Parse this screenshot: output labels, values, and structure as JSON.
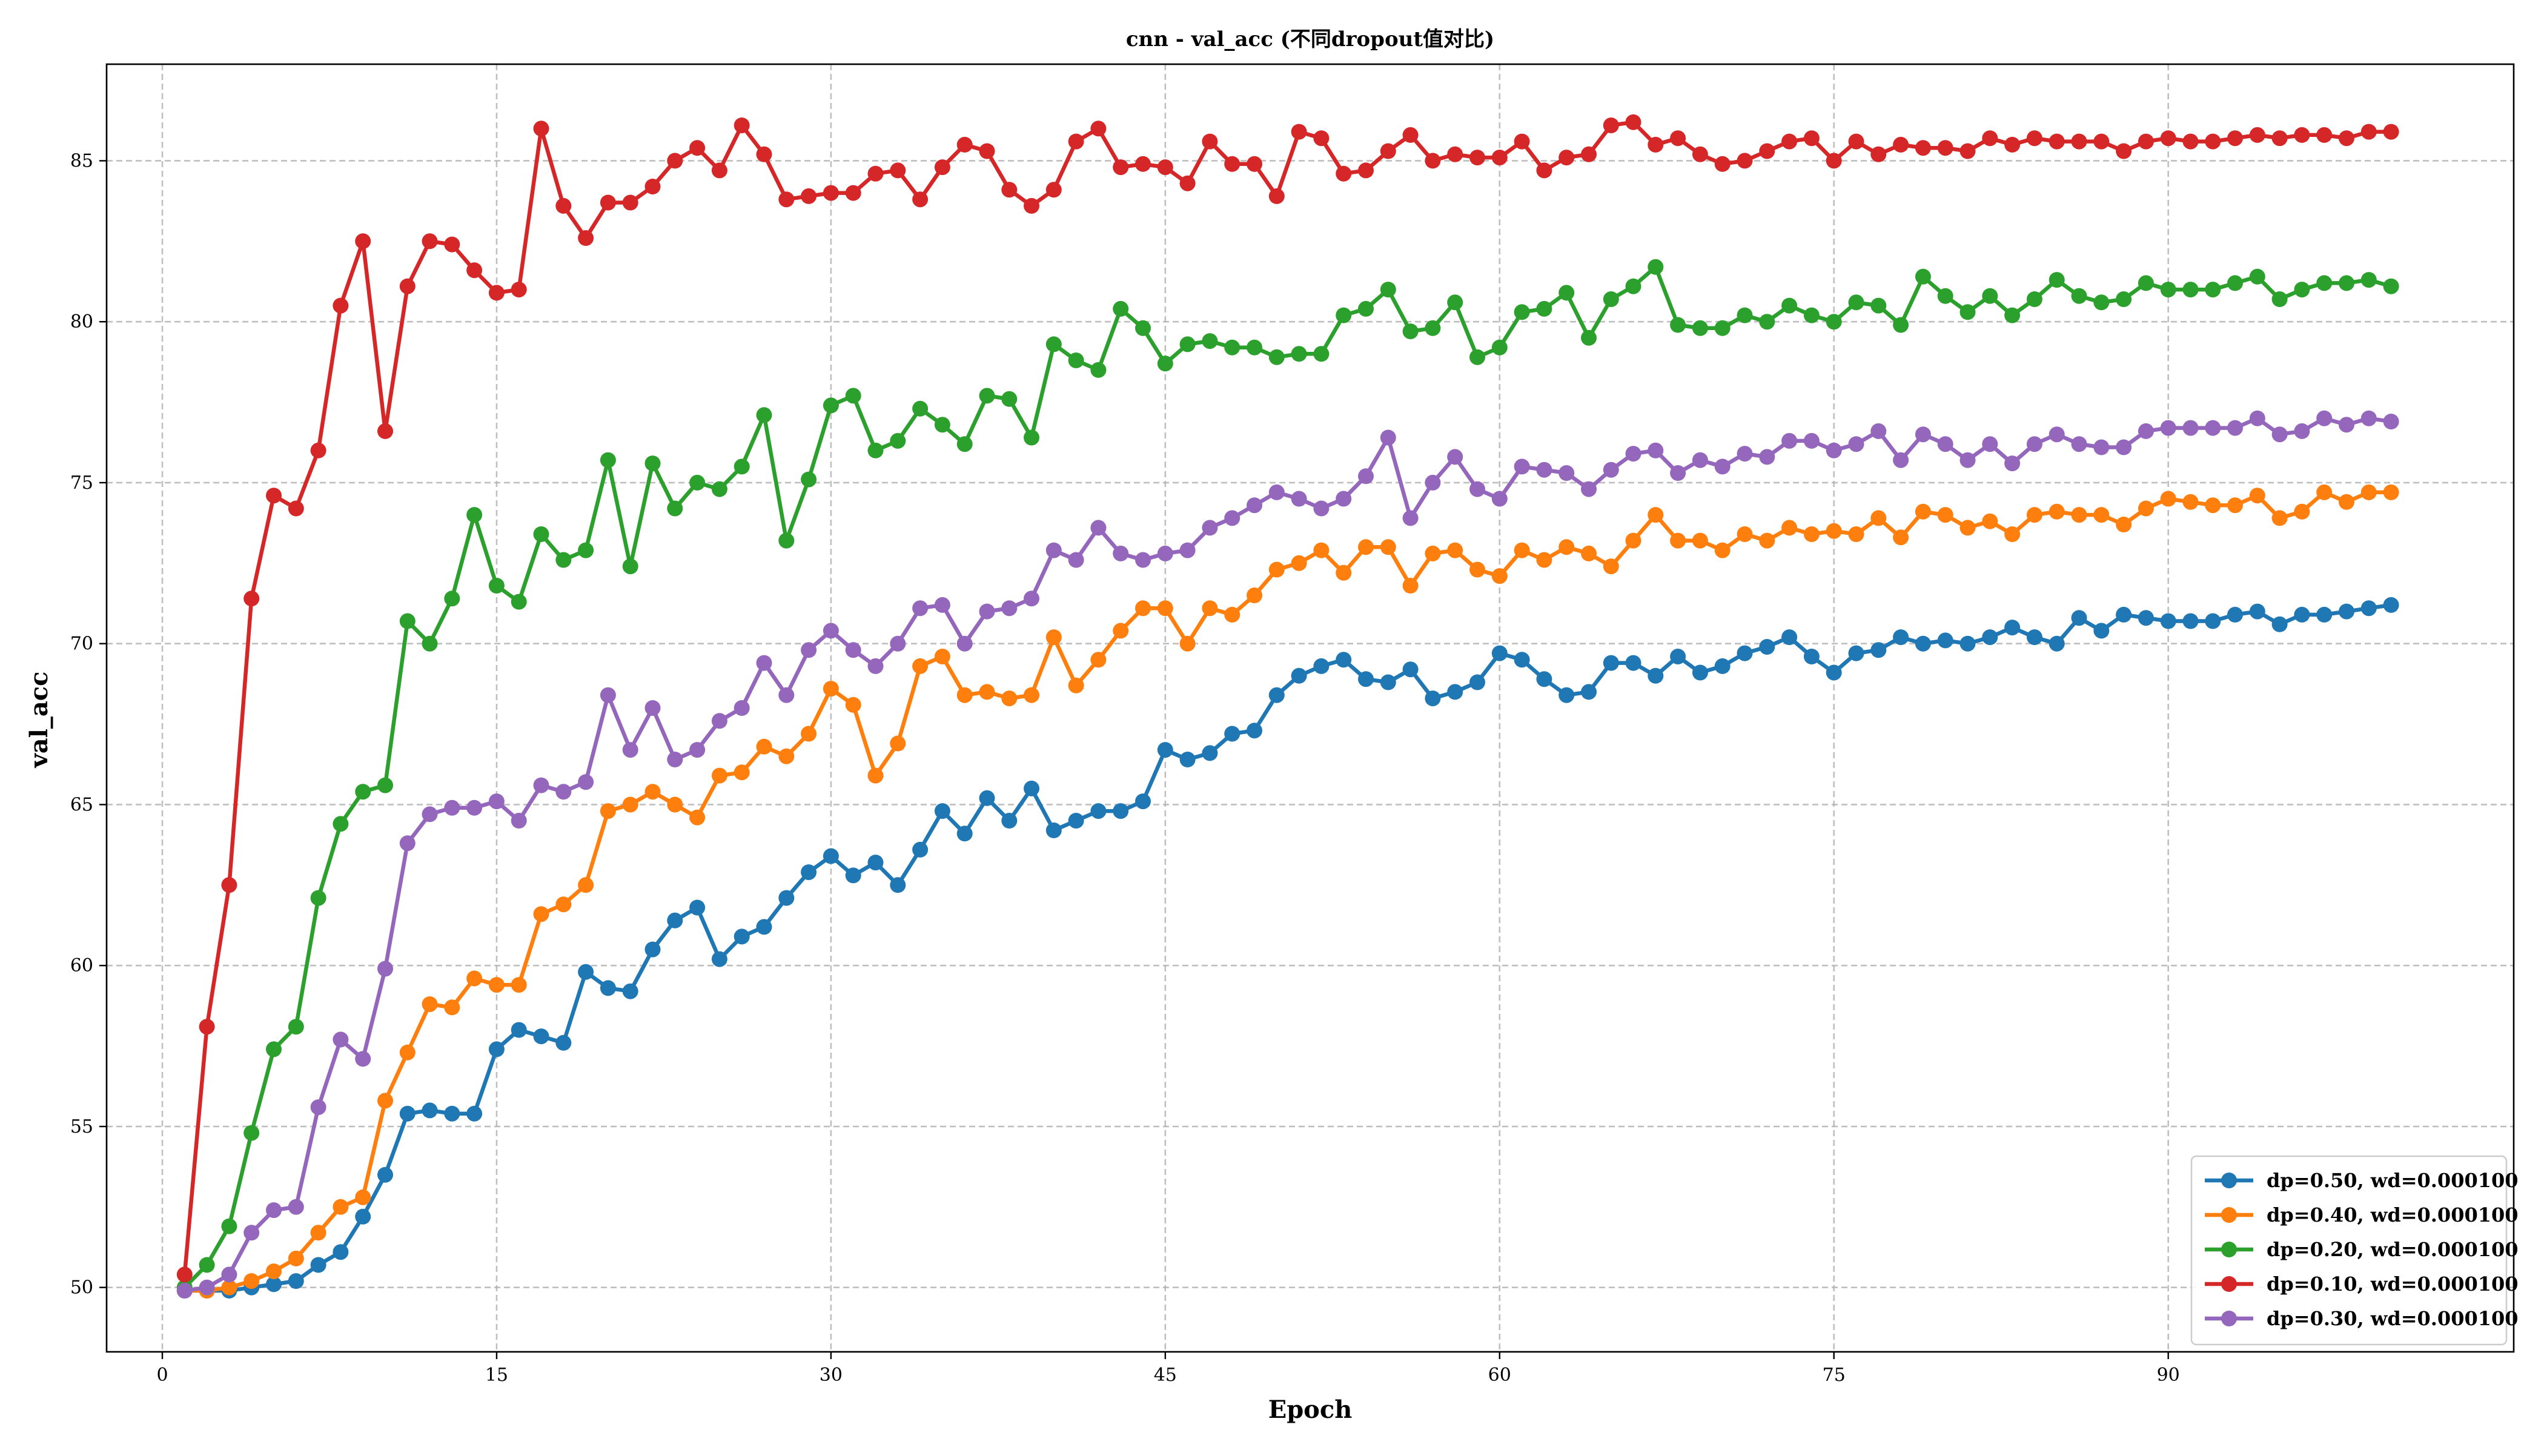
{
  "chart_data": {
    "type": "line",
    "title": "cnn - val_acc (不同dropout值对比)",
    "xlabel": "Epoch",
    "ylabel": "val_acc",
    "xlim": [
      -2.5,
      105.5
    ],
    "ylim": [
      48,
      88
    ],
    "xticks": [
      0,
      15,
      30,
      45,
      60,
      75,
      90
    ],
    "yticks": [
      50,
      55,
      60,
      65,
      70,
      75,
      80,
      85
    ],
    "grid": true,
    "legend_position": "lower-right",
    "series": [
      {
        "name": "dp=0.50, wd=0.000100",
        "color": "#1f77b4",
        "x": [
          1,
          2,
          3,
          4,
          5,
          6,
          7,
          8,
          9,
          10,
          11,
          12,
          13,
          14,
          15,
          16,
          17,
          18,
          19,
          20,
          21,
          22,
          23,
          24,
          25,
          26,
          27,
          28,
          29,
          30,
          31,
          32,
          33,
          34,
          35,
          36,
          37,
          38,
          39,
          40,
          41,
          42,
          43,
          44,
          45,
          46,
          47,
          48,
          49,
          50,
          51,
          52,
          53,
          54,
          55,
          56,
          57,
          58,
          59,
          60,
          61,
          62,
          63,
          64,
          65,
          66,
          67,
          68,
          69,
          70,
          71,
          72,
          73,
          74,
          75,
          76,
          77,
          78,
          79,
          80,
          81,
          82,
          83,
          84,
          85,
          86,
          87,
          88,
          89,
          90,
          91,
          92,
          93,
          94,
          95,
          96,
          97,
          98,
          99,
          100
        ],
        "y": [
          49.9,
          49.9,
          49.9,
          50.0,
          50.1,
          50.2,
          50.7,
          51.1,
          52.2,
          53.5,
          55.4,
          55.5,
          55.4,
          55.4,
          57.4,
          58.0,
          57.8,
          57.6,
          59.8,
          59.3,
          59.2,
          60.5,
          61.4,
          61.8,
          60.2,
          60.9,
          61.2,
          62.1,
          62.9,
          63.4,
          62.8,
          63.2,
          62.5,
          63.6,
          64.8,
          64.1,
          65.2,
          64.5,
          65.5,
          64.2,
          64.5,
          64.8,
          64.8,
          65.1,
          66.7,
          66.4,
          66.6,
          67.2,
          67.3,
          68.4,
          69.0,
          69.3,
          69.5,
          68.9,
          68.8,
          69.2,
          68.3,
          68.5,
          68.8,
          69.7,
          69.5,
          68.9,
          68.4,
          68.5,
          69.4,
          69.4,
          69.0,
          69.6,
          69.1,
          69.3,
          69.7,
          69.9,
          70.2,
          69.6,
          69.1,
          69.7,
          69.8,
          70.2,
          70.0,
          70.1,
          70.0,
          70.2,
          70.5,
          70.2,
          70.0,
          70.8,
          70.4,
          70.9,
          70.8,
          70.7,
          70.7,
          70.7,
          70.9,
          71.0,
          70.6,
          70.9,
          70.9,
          71.0,
          71.1,
          71.2
        ]
      },
      {
        "name": "dp=0.40, wd=0.000100",
        "color": "#ff7f0e",
        "x": [
          1,
          2,
          3,
          4,
          5,
          6,
          7,
          8,
          9,
          10,
          11,
          12,
          13,
          14,
          15,
          16,
          17,
          18,
          19,
          20,
          21,
          22,
          23,
          24,
          25,
          26,
          27,
          28,
          29,
          30,
          31,
          32,
          33,
          34,
          35,
          36,
          37,
          38,
          39,
          40,
          41,
          42,
          43,
          44,
          45,
          46,
          47,
          48,
          49,
          50,
          51,
          52,
          53,
          54,
          55,
          56,
          57,
          58,
          59,
          60,
          61,
          62,
          63,
          64,
          65,
          66,
          67,
          68,
          69,
          70,
          71,
          72,
          73,
          74,
          75,
          76,
          77,
          78,
          79,
          80,
          81,
          82,
          83,
          84,
          85,
          86,
          87,
          88,
          89,
          90,
          91,
          92,
          93,
          94,
          95,
          96,
          97,
          98,
          99,
          100
        ],
        "y": [
          49.9,
          49.9,
          50.0,
          50.2,
          50.5,
          50.9,
          51.7,
          52.5,
          52.8,
          55.8,
          57.3,
          58.8,
          58.7,
          59.6,
          59.4,
          59.4,
          61.6,
          61.9,
          62.5,
          64.8,
          65.0,
          65.4,
          65.0,
          64.6,
          65.9,
          66.0,
          66.8,
          66.5,
          67.2,
          68.6,
          68.1,
          65.9,
          66.9,
          69.3,
          69.6,
          68.4,
          68.5,
          68.3,
          68.4,
          70.2,
          68.7,
          69.5,
          70.4,
          71.1,
          71.1,
          70.0,
          71.1,
          70.9,
          71.5,
          72.3,
          72.5,
          72.9,
          72.2,
          73.0,
          73.0,
          71.8,
          72.8,
          72.9,
          72.3,
          72.1,
          72.9,
          72.6,
          73.0,
          72.8,
          72.4,
          73.2,
          74.0,
          73.2,
          73.2,
          72.9,
          73.4,
          73.2,
          73.6,
          73.4,
          73.5,
          73.4,
          73.9,
          73.3,
          74.1,
          74.0,
          73.6,
          73.8,
          73.4,
          74.0,
          74.1,
          74.0,
          74.0,
          73.7,
          74.2,
          74.5,
          74.4,
          74.3,
          74.3,
          74.6,
          73.9,
          74.1,
          74.7,
          74.4,
          74.7,
          74.7
        ]
      },
      {
        "name": "dp=0.20, wd=0.000100",
        "color": "#2ca02c",
        "x": [
          1,
          2,
          3,
          4,
          5,
          6,
          7,
          8,
          9,
          10,
          11,
          12,
          13,
          14,
          15,
          16,
          17,
          18,
          19,
          20,
          21,
          22,
          23,
          24,
          25,
          26,
          27,
          28,
          29,
          30,
          31,
          32,
          33,
          34,
          35,
          36,
          37,
          38,
          39,
          40,
          41,
          42,
          43,
          44,
          45,
          46,
          47,
          48,
          49,
          50,
          51,
          52,
          53,
          54,
          55,
          56,
          57,
          58,
          59,
          60,
          61,
          62,
          63,
          64,
          65,
          66,
          67,
          68,
          69,
          70,
          71,
          72,
          73,
          74,
          75,
          76,
          77,
          78,
          79,
          80,
          81,
          82,
          83,
          84,
          85,
          86,
          87,
          88,
          89,
          90,
          91,
          92,
          93,
          94,
          95,
          96,
          97,
          98,
          99,
          100
        ],
        "y": [
          50.0,
          50.7,
          51.9,
          54.8,
          57.4,
          58.1,
          62.1,
          64.4,
          65.4,
          65.6,
          70.7,
          70.0,
          71.4,
          74.0,
          71.8,
          71.3,
          73.4,
          72.6,
          72.9,
          75.7,
          72.4,
          75.6,
          74.2,
          75.0,
          74.8,
          75.5,
          77.1,
          73.2,
          75.1,
          77.4,
          77.7,
          76.0,
          76.3,
          77.3,
          76.8,
          76.2,
          77.7,
          77.6,
          76.4,
          79.3,
          78.8,
          78.5,
          80.4,
          79.8,
          78.7,
          79.3,
          79.4,
          79.2,
          79.2,
          78.9,
          79.0,
          79.0,
          80.2,
          80.4,
          81.0,
          79.7,
          79.8,
          80.6,
          78.9,
          79.2,
          80.3,
          80.4,
          80.9,
          79.5,
          80.7,
          81.1,
          81.7,
          79.9,
          79.8,
          79.8,
          80.2,
          80.0,
          80.5,
          80.2,
          80.0,
          80.6,
          80.5,
          79.9,
          81.4,
          80.8,
          80.3,
          80.8,
          80.2,
          80.7,
          81.3,
          80.8,
          80.6,
          80.7,
          81.2,
          81.0,
          81.0,
          81.0,
          81.2,
          81.4,
          80.7,
          81.0,
          81.2,
          81.2,
          81.3,
          81.1
        ]
      },
      {
        "name": "dp=0.10, wd=0.000100",
        "color": "#d62728",
        "x": [
          1,
          2,
          3,
          4,
          5,
          6,
          7,
          8,
          9,
          10,
          11,
          12,
          13,
          14,
          15,
          16,
          17,
          18,
          19,
          20,
          21,
          22,
          23,
          24,
          25,
          26,
          27,
          28,
          29,
          30,
          31,
          32,
          33,
          34,
          35,
          36,
          37,
          38,
          39,
          40,
          41,
          42,
          43,
          44,
          45,
          46,
          47,
          48,
          49,
          50,
          51,
          52,
          53,
          54,
          55,
          56,
          57,
          58,
          59,
          60,
          61,
          62,
          63,
          64,
          65,
          66,
          67,
          68,
          69,
          70,
          71,
          72,
          73,
          74,
          75,
          76,
          77,
          78,
          79,
          80,
          81,
          82,
          83,
          84,
          85,
          86,
          87,
          88,
          89,
          90,
          91,
          92,
          93,
          94,
          95,
          96,
          97,
          98,
          99,
          100
        ],
        "y": [
          50.4,
          58.1,
          62.5,
          71.4,
          74.6,
          74.2,
          76.0,
          80.5,
          82.5,
          76.6,
          81.1,
          82.5,
          82.4,
          81.6,
          80.9,
          81.0,
          86.0,
          83.6,
          82.6,
          83.7,
          83.7,
          84.2,
          85.0,
          85.4,
          84.7,
          86.1,
          85.2,
          83.8,
          83.9,
          84.0,
          84.0,
          84.6,
          84.7,
          83.8,
          84.8,
          85.5,
          85.3,
          84.1,
          83.6,
          84.1,
          85.6,
          86.0,
          84.8,
          84.9,
          84.8,
          84.3,
          85.6,
          84.9,
          84.9,
          83.9,
          85.9,
          85.7,
          84.6,
          84.7,
          85.3,
          85.8,
          85.0,
          85.2,
          85.1,
          85.1,
          85.6,
          84.7,
          85.1,
          85.2,
          86.1,
          86.2,
          85.5,
          85.7,
          85.2,
          84.9,
          85.0,
          85.3,
          85.6,
          85.7,
          85.0,
          85.6,
          85.2,
          85.5,
          85.4,
          85.4,
          85.3,
          85.7,
          85.5,
          85.7,
          85.6,
          85.6,
          85.6,
          85.3,
          85.6,
          85.7,
          85.6,
          85.6,
          85.7,
          85.8,
          85.7,
          85.8,
          85.8,
          85.7,
          85.9,
          85.9
        ]
      },
      {
        "name": "dp=0.30, wd=0.000100",
        "color": "#9467bd",
        "x": [
          1,
          2,
          3,
          4,
          5,
          6,
          7,
          8,
          9,
          10,
          11,
          12,
          13,
          14,
          15,
          16,
          17,
          18,
          19,
          20,
          21,
          22,
          23,
          24,
          25,
          26,
          27,
          28,
          29,
          30,
          31,
          32,
          33,
          34,
          35,
          36,
          37,
          38,
          39,
          40,
          41,
          42,
          43,
          44,
          45,
          46,
          47,
          48,
          49,
          50,
          51,
          52,
          53,
          54,
          55,
          56,
          57,
          58,
          59,
          60,
          61,
          62,
          63,
          64,
          65,
          66,
          67,
          68,
          69,
          70,
          71,
          72,
          73,
          74,
          75,
          76,
          77,
          78,
          79,
          80,
          81,
          82,
          83,
          84,
          85,
          86,
          87,
          88,
          89,
          90,
          91,
          92,
          93,
          94,
          95,
          96,
          97,
          98,
          99,
          100
        ],
        "y": [
          49.9,
          50.0,
          50.4,
          51.7,
          52.4,
          52.5,
          55.6,
          57.7,
          57.1,
          59.9,
          63.8,
          64.7,
          64.9,
          64.9,
          65.1,
          64.5,
          65.6,
          65.4,
          65.7,
          68.4,
          66.7,
          68.0,
          66.4,
          66.7,
          67.6,
          68.0,
          69.4,
          68.4,
          69.8,
          70.4,
          69.8,
          69.3,
          70.0,
          71.1,
          71.2,
          70.0,
          71.0,
          71.1,
          71.4,
          72.9,
          72.6,
          73.6,
          72.8,
          72.6,
          72.8,
          72.9,
          73.6,
          73.9,
          74.3,
          74.7,
          74.5,
          74.2,
          74.5,
          75.2,
          76.4,
          73.9,
          75.0,
          75.8,
          74.8,
          74.5,
          75.5,
          75.4,
          75.3,
          74.8,
          75.4,
          75.9,
          76.0,
          75.3,
          75.7,
          75.5,
          75.9,
          75.8,
          76.3,
          76.3,
          76.0,
          76.2,
          76.6,
          75.7,
          76.5,
          76.2,
          75.7,
          76.2,
          75.6,
          76.2,
          76.5,
          76.2,
          76.1,
          76.1,
          76.6,
          76.7,
          76.7,
          76.7,
          76.7,
          77.0,
          76.5,
          76.6,
          77.0,
          76.8,
          77.0,
          76.9
        ]
      }
    ]
  }
}
